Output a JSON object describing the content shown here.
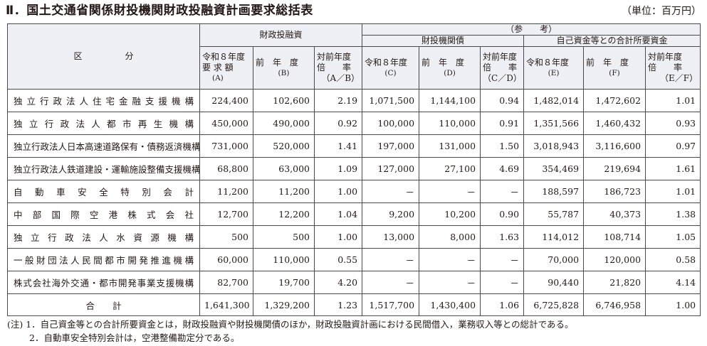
{
  "title": "Ⅱ．国土交通省関係財投機関財政投融資計画要求総括表",
  "unit": "（単位：百万円）",
  "header": {
    "category": "区　　　　　分",
    "fiscal_plan": "財政投融資",
    "reference": "（参　　考）",
    "bonds": "財投機関債",
    "own_funds": "自己資金等との合計所要資金",
    "col_a_top": "令和８年度",
    "col_a_mid": "要 求 額",
    "col_a_sym": "(A)",
    "col_b_top": "前　年　度",
    "col_b_sym": "(B)",
    "col_ab_top": "対前年度",
    "col_ab_mid": "倍　　率",
    "col_ab_sym": "（A／B）",
    "col_c_top": "令和８年度",
    "col_c_sym": "(C)",
    "col_d_top": "前　年　度",
    "col_d_sym": "(D)",
    "col_cd_top": "対前年度",
    "col_cd_mid": "倍　　率",
    "col_cd_sym": "（C／D）",
    "col_e_top": "令和８年度",
    "col_e_sym": "(E)",
    "col_f_top": "前　年　度",
    "col_f_sym": "(F)",
    "col_ef_top": "対前年度",
    "col_ef_mid": "倍　　率",
    "col_ef_sym": "（E／F）"
  },
  "rows": [
    {
      "name": "独立行政法人住宅金融支援機構",
      "a": "224,400",
      "b": "102,600",
      "ab": "2.19",
      "c": "1,071,500",
      "d": "1,144,100",
      "cd": "0.94",
      "e": "1,482,014",
      "f": "1,472,602",
      "ef": "1.01"
    },
    {
      "name": "独立行政法人都市再生機構",
      "a": "450,000",
      "b": "490,000",
      "ab": "0.92",
      "c": "100,000",
      "d": "110,000",
      "cd": "0.91",
      "e": "1,351,566",
      "f": "1,460,432",
      "ef": "0.93"
    },
    {
      "name": "独立行政法人日本高速道路保有・債務返済機構",
      "a": "731,000",
      "b": "520,000",
      "ab": "1.41",
      "c": "197,000",
      "d": "131,000",
      "cd": "1.50",
      "e": "3,018,943",
      "f": "3,116,600",
      "ef": "0.97"
    },
    {
      "name": "独立行政法人鉄道建設・運輸施設整備支援機構",
      "a": "68,800",
      "b": "63,000",
      "ab": "1.09",
      "c": "127,000",
      "d": "27,100",
      "cd": "4.69",
      "e": "354,469",
      "f": "219,694",
      "ef": "1.61"
    },
    {
      "name": "自動車安全特別会計",
      "a": "11,200",
      "b": "11,200",
      "ab": "1.00",
      "c": "－",
      "d": "－",
      "cd": "－",
      "e": "188,597",
      "f": "186,723",
      "ef": "1.01"
    },
    {
      "name": "中部国際空港株式会社",
      "a": "12,700",
      "b": "12,200",
      "ab": "1.04",
      "c": "9,200",
      "d": "10,200",
      "cd": "0.90",
      "e": "55,787",
      "f": "40,373",
      "ef": "1.38"
    },
    {
      "name": "独立行政法人水資源機構",
      "a": "500",
      "b": "500",
      "ab": "1.00",
      "c": "13,000",
      "d": "8,000",
      "cd": "1.63",
      "e": "114,012",
      "f": "108,714",
      "ef": "1.05"
    },
    {
      "name": "一般財団法人民間都市開発推進機構",
      "a": "60,000",
      "b": "110,000",
      "ab": "0.55",
      "c": "－",
      "d": "－",
      "cd": "－",
      "e": "70,000",
      "f": "120,000",
      "ef": "0.58"
    },
    {
      "name": "株式会社海外交通・都市開発事業支援機構",
      "a": "82,700",
      "b": "19,700",
      "ab": "4.20",
      "c": "－",
      "d": "－",
      "cd": "－",
      "e": "90,440",
      "f": "21,820",
      "ef": "4.14"
    }
  ],
  "total": {
    "name": "合　　計",
    "a": "1,641,300",
    "b": "1,329,200",
    "ab": "1.23",
    "c": "1,517,700",
    "d": "1,430,400",
    "cd": "1.06",
    "e": "6,725,828",
    "f": "6,746,958",
    "ef": "1.00"
  },
  "notes": [
    "(注) 1．自己資金等との合計所要資金とは，財政投融資や財投機関債のほか，財政投融資計画における民間借入，業務収入等との総計である。",
    "2．自動車安全特別会計は，空港整備勘定分である。"
  ]
}
